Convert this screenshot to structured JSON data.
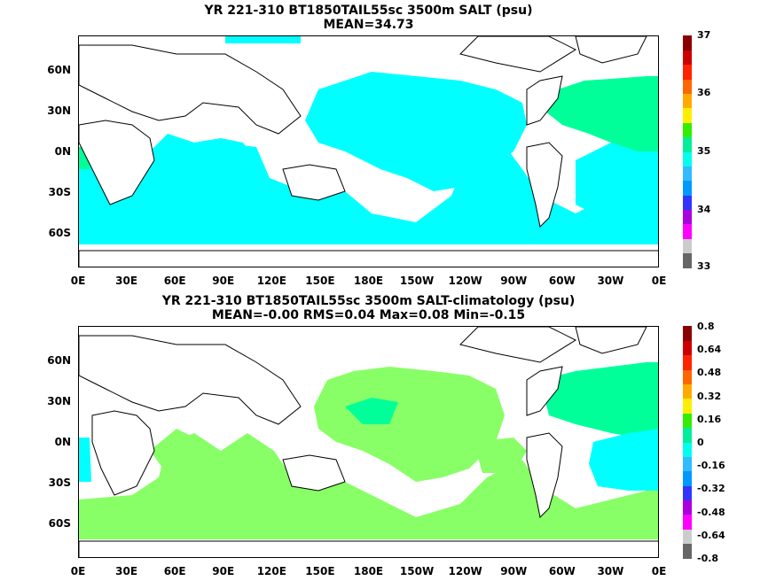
{
  "panels": [
    {
      "title_line1": "YR 221-310 BT1850TAIL55sc 3500m SALT (psu)",
      "title_line2": "MEAN=34.73",
      "colorbar_ticks": [
        "37",
        "36",
        "35",
        "34",
        "33"
      ],
      "colorbar_colors": [
        "#666666",
        "#cccccc",
        "#ff00ff",
        "#aa00dd",
        "#3333ff",
        "#0099ff",
        "#33bbff",
        "#00ffee",
        "#00ee99",
        "#33ee00",
        "#ffee00",
        "#ffaa00",
        "#ff6600",
        "#ff2200",
        "#cc0000",
        "#880000"
      ],
      "fill_colors": {
        "primary": "#00ffff",
        "secondary": "#00ff99"
      }
    },
    {
      "title_line1": "YR 221-310 BT1850TAIL55sc 3500m SALT-climatology (psu)",
      "title_line2": "MEAN=-0.00   RMS=0.04   Max=0.08   Min=-0.15",
      "colorbar_ticks": [
        "0.8",
        "0.64",
        "0.48",
        "0.32",
        "0.16",
        "0",
        "-0.16",
        "-0.32",
        "-0.48",
        "-0.64",
        "-0.8"
      ],
      "colorbar_colors": [
        "#666666",
        "#cccccc",
        "#ff00ff",
        "#aa00dd",
        "#3333ff",
        "#0099ff",
        "#33bbff",
        "#00ffee",
        "#00ee99",
        "#33ee00",
        "#ffee00",
        "#ffaa00",
        "#ff6600",
        "#ff2200",
        "#cc0000",
        "#880000"
      ],
      "fill_colors": {
        "primary": "#88ff66",
        "secondary": "#00ffff",
        "tertiary": "#00ff99"
      }
    }
  ],
  "lat_labels": [
    "60N",
    "30N",
    "0N",
    "30S",
    "60S"
  ],
  "lon_labels": [
    "0E",
    "30E",
    "60E",
    "90E",
    "120E",
    "150E",
    "180E",
    "150W",
    "120W",
    "90W",
    "60W",
    "30W",
    "0E"
  ]
}
